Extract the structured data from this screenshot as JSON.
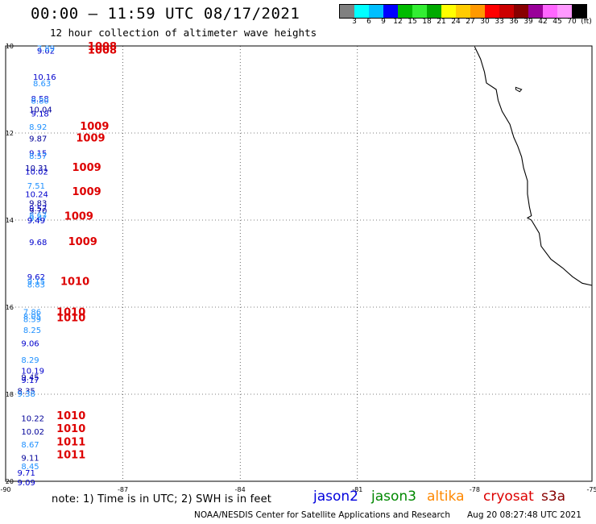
{
  "header": {
    "title": "00:00 – 11:59 UTC 08/17/2021",
    "subtitle": "12 hour collection of altimeter wave heights"
  },
  "legend_scale": {
    "colors": [
      "#808080",
      "#00ffff",
      "#00bfff",
      "#0000ff",
      "#00bb00",
      "#33ee33",
      "#00aa00",
      "#ffff00",
      "#ffcc00",
      "#ff9900",
      "#ff0000",
      "#cc0000",
      "#880000",
      "#990099",
      "#ff66ff",
      "#ff99ff",
      "#000000"
    ],
    "labels": [
      "3",
      "6",
      "9",
      "12",
      "15",
      "18",
      "21",
      "24",
      "27",
      "30",
      "33",
      "36",
      "39",
      "42",
      "45",
      "70",
      "(ft)"
    ]
  },
  "map": {
    "lon_ticks": [
      "-90",
      "-87",
      "-84",
      "-81",
      "-78",
      "-75"
    ],
    "lat_ticks": [
      "10",
      "12",
      "14",
      "16",
      "18",
      "20"
    ],
    "lon_range": [
      -90,
      -75
    ],
    "lat_range": [
      10,
      20
    ]
  },
  "observations": [
    {
      "lat": 10.1,
      "lon": -89.2,
      "text": "9.02",
      "color": "#0000cc"
    },
    {
      "lat": 10.05,
      "lon": -89.2,
      "text": "7.89",
      "color": "#1e90ff"
    },
    {
      "lat": 10.1,
      "lon": -87.9,
      "text": "1008",
      "color": "#dd0000"
    },
    {
      "lat": 10.02,
      "lon": -87.9,
      "text": "1008",
      "color": "#dd0000"
    },
    {
      "lat": 10.7,
      "lon": -89.3,
      "text": "10.16",
      "color": "#0000cc"
    },
    {
      "lat": 10.85,
      "lon": -89.3,
      "text": "8.63",
      "color": "#1e90ff"
    },
    {
      "lat": 11.2,
      "lon": -89.35,
      "text": "8.58",
      "color": "#0000cc"
    },
    {
      "lat": 11.25,
      "lon": -89.35,
      "text": "8.80",
      "color": "#1e90ff"
    },
    {
      "lat": 11.45,
      "lon": -89.4,
      "text": "10.04",
      "color": "#000099"
    },
    {
      "lat": 11.55,
      "lon": -89.35,
      "text": "9.18",
      "color": "#0000cc"
    },
    {
      "lat": 11.85,
      "lon": -89.4,
      "text": "8.92",
      "color": "#1e90ff"
    },
    {
      "lat": 11.85,
      "lon": -88.1,
      "text": "1009",
      "color": "#dd0000"
    },
    {
      "lat": 12.12,
      "lon": -89.4,
      "text": "9.87",
      "color": "#000099"
    },
    {
      "lat": 12.12,
      "lon": -88.2,
      "text": "1009",
      "color": "#dd0000"
    },
    {
      "lat": 12.45,
      "lon": -89.4,
      "text": "9.15",
      "color": "#0000cc"
    },
    {
      "lat": 12.52,
      "lon": -89.4,
      "text": "8.57",
      "color": "#1e90ff"
    },
    {
      "lat": 12.8,
      "lon": -89.5,
      "text": "10.31",
      "color": "#000099"
    },
    {
      "lat": 12.88,
      "lon": -89.5,
      "text": "10.02",
      "color": "#0000cc"
    },
    {
      "lat": 12.8,
      "lon": -88.3,
      "text": "1009",
      "color": "#dd0000"
    },
    {
      "lat": 13.2,
      "lon": -89.45,
      "text": "7.51",
      "color": "#1e90ff"
    },
    {
      "lat": 13.4,
      "lon": -89.5,
      "text": "10.24",
      "color": "#0000cc"
    },
    {
      "lat": 13.35,
      "lon": -88.3,
      "text": "1009",
      "color": "#dd0000"
    },
    {
      "lat": 13.6,
      "lon": -89.4,
      "text": "9.83",
      "color": "#000099"
    },
    {
      "lat": 13.72,
      "lon": -89.4,
      "text": "9.57",
      "color": "#0000cc"
    },
    {
      "lat": 13.78,
      "lon": -89.4,
      "text": "9.70",
      "color": "#000099"
    },
    {
      "lat": 13.88,
      "lon": -89.4,
      "text": "8.67",
      "color": "#1e90ff"
    },
    {
      "lat": 13.95,
      "lon": -89.4,
      "text": "9.47",
      "color": "#1e90ff"
    },
    {
      "lat": 14.0,
      "lon": -89.45,
      "text": "9.49",
      "color": "#0000cc"
    },
    {
      "lat": 13.92,
      "lon": -88.5,
      "text": "1009",
      "color": "#dd0000"
    },
    {
      "lat": 14.5,
      "lon": -89.4,
      "text": "9.68",
      "color": "#0000cc"
    },
    {
      "lat": 14.5,
      "lon": -88.4,
      "text": "1009",
      "color": "#dd0000"
    },
    {
      "lat": 15.3,
      "lon": -89.45,
      "text": "9.62",
      "color": "#0000cc"
    },
    {
      "lat": 15.4,
      "lon": -89.45,
      "text": "9.15",
      "color": "#1e90ff"
    },
    {
      "lat": 15.47,
      "lon": -89.45,
      "text": "8.83",
      "color": "#1e90ff"
    },
    {
      "lat": 15.42,
      "lon": -88.6,
      "text": "1010",
      "color": "#dd0000"
    },
    {
      "lat": 16.1,
      "lon": -89.55,
      "text": "7.86",
      "color": "#1e90ff"
    },
    {
      "lat": 16.2,
      "lon": -89.55,
      "text": "8.05",
      "color": "#1e90ff"
    },
    {
      "lat": 16.27,
      "lon": -89.55,
      "text": "8.59",
      "color": "#1e90ff"
    },
    {
      "lat": 16.12,
      "lon": -88.7,
      "text": "1010",
      "color": "#dd0000"
    },
    {
      "lat": 16.25,
      "lon": -88.7,
      "text": "1010",
      "color": "#dd0000"
    },
    {
      "lat": 16.52,
      "lon": -89.55,
      "text": "8.25",
      "color": "#1e90ff"
    },
    {
      "lat": 16.82,
      "lon": -89.6,
      "text": "9.06",
      "color": "#0000cc"
    },
    {
      "lat": 17.2,
      "lon": -89.6,
      "text": "8.29",
      "color": "#1e90ff"
    },
    {
      "lat": 17.45,
      "lon": -89.6,
      "text": "10.19",
      "color": "#0000cc"
    },
    {
      "lat": 17.6,
      "lon": -89.6,
      "text": "9.45",
      "color": "#000099"
    },
    {
      "lat": 17.67,
      "lon": -89.6,
      "text": "9.17",
      "color": "#0000cc"
    },
    {
      "lat": 17.92,
      "lon": -89.7,
      "text": "8.35",
      "color": "#000099"
    },
    {
      "lat": 17.98,
      "lon": -89.7,
      "text": "9.38",
      "color": "#1e90ff"
    },
    {
      "lat": 18.55,
      "lon": -89.6,
      "text": "10.22",
      "color": "#000099"
    },
    {
      "lat": 18.5,
      "lon": -88.7,
      "text": "1010",
      "color": "#dd0000"
    },
    {
      "lat": 18.85,
      "lon": -89.6,
      "text": "10.02",
      "color": "#000099"
    },
    {
      "lat": 18.8,
      "lon": -88.7,
      "text": "1010",
      "color": "#dd0000"
    },
    {
      "lat": 19.15,
      "lon": -89.6,
      "text": "8.67",
      "color": "#1e90ff"
    },
    {
      "lat": 19.1,
      "lon": -88.7,
      "text": "1011",
      "color": "#dd0000"
    },
    {
      "lat": 19.45,
      "lon": -89.6,
      "text": "9.11",
      "color": "#000099"
    },
    {
      "lat": 19.4,
      "lon": -88.7,
      "text": "1011",
      "color": "#dd0000"
    },
    {
      "lat": 19.65,
      "lon": -89.6,
      "text": "8.45",
      "color": "#1e90ff"
    },
    {
      "lat": 19.8,
      "lon": -89.7,
      "text": "9.71",
      "color": "#0000cc"
    },
    {
      "lat": 20.02,
      "lon": -89.7,
      "text": "9.09",
      "color": "#0000cc"
    }
  ],
  "coastline": [
    [
      10.02,
      -78.0
    ],
    [
      10.3,
      -77.85
    ],
    [
      10.6,
      -77.75
    ],
    [
      10.85,
      -77.7
    ],
    [
      11.0,
      -77.45
    ],
    [
      11.25,
      -77.4
    ],
    [
      11.5,
      -77.3
    ],
    [
      11.8,
      -77.1
    ],
    [
      12.1,
      -77.0
    ],
    [
      12.3,
      -76.9
    ],
    [
      12.55,
      -76.8
    ],
    [
      12.8,
      -76.75
    ],
    [
      13.1,
      -76.65
    ],
    [
      13.4,
      -76.65
    ],
    [
      13.7,
      -76.6
    ],
    [
      13.9,
      -76.55
    ],
    [
      13.95,
      -76.65
    ],
    [
      14.0,
      -76.55
    ],
    [
      14.3,
      -76.35
    ],
    [
      14.6,
      -76.3
    ],
    [
      14.9,
      -76.05
    ],
    [
      15.1,
      -75.75
    ],
    [
      15.3,
      -75.5
    ],
    [
      15.45,
      -75.25
    ],
    [
      15.5,
      -75.0
    ]
  ],
  "island": [
    [
      10.95,
      -76.95
    ],
    [
      11.0,
      -76.8
    ],
    [
      11.05,
      -76.85
    ],
    [
      11.0,
      -76.95
    ]
  ],
  "footer": {
    "note": "note: 1) Time is in UTC; 2) SWH is in feet",
    "satellites": [
      {
        "name": "jason2",
        "color": "#0000dd"
      },
      {
        "name": "jason3",
        "color": "#008800"
      },
      {
        "name": "altika",
        "color": "#ff8800"
      },
      {
        "name": "cryosat",
        "color": "#dd0000"
      },
      {
        "name": "s3a",
        "color": "#880000"
      }
    ],
    "credit": "NOAA/NESDIS Center for Satellite Applications and Research",
    "timestamp": "Aug 20 08:27:48 UTC 2021"
  }
}
